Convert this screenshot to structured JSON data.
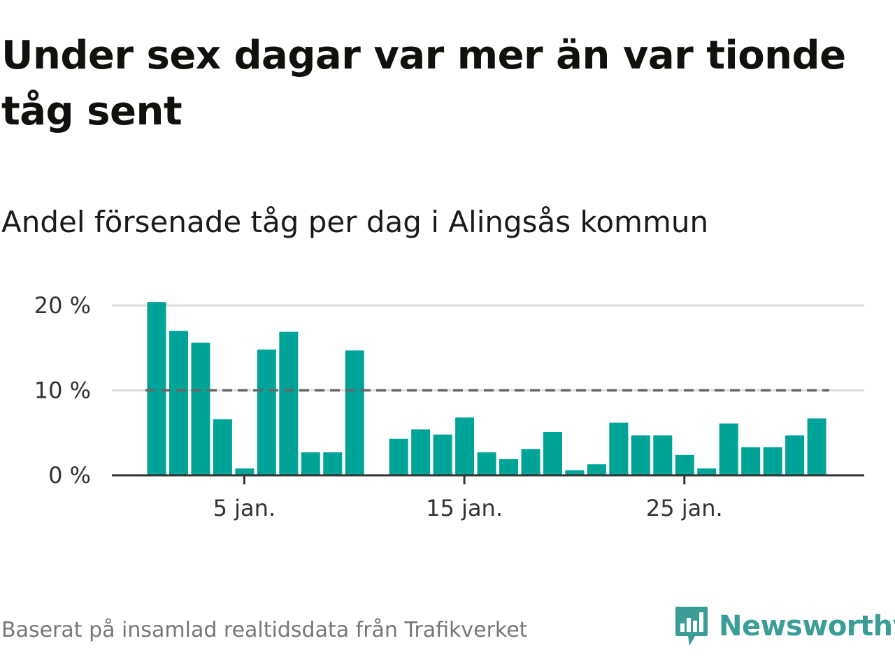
{
  "header": {
    "title": "Under sex dagar var mer än var tionde tåg sent",
    "subtitle": "Andel försenade tåg per dag i Alingsås kommun"
  },
  "footer": {
    "source": "Baserat på insamlad realtidsdata från Trafikverket",
    "brand": "Newsworthy"
  },
  "colors": {
    "bar": "#00a398",
    "reference_line": "#666666",
    "grid": "#dddddd",
    "axis": "#333333",
    "brand": "#3a9e96"
  },
  "chart_data": {
    "type": "bar",
    "x": [
      1,
      2,
      3,
      4,
      5,
      6,
      7,
      8,
      9,
      10,
      11,
      12,
      13,
      14,
      15,
      16,
      17,
      18,
      19,
      20,
      21,
      22,
      23,
      24,
      25,
      26,
      27,
      28,
      29,
      30,
      31
    ],
    "values": [
      20.4,
      17.0,
      15.6,
      6.6,
      0.8,
      14.8,
      16.9,
      2.7,
      2.7,
      14.7,
      null,
      4.3,
      5.4,
      4.8,
      6.8,
      2.7,
      1.9,
      3.1,
      5.1,
      0.6,
      1.3,
      6.2,
      4.7,
      4.7,
      2.4,
      0.8,
      6.1,
      3.3,
      3.3,
      4.7,
      6.7
    ],
    "reference_line": {
      "value": 10,
      "style": "dashed"
    },
    "ylim": [
      0,
      20
    ],
    "yticks": [
      {
        "value": 0,
        "label": "0 %"
      },
      {
        "value": 10,
        "label": "10 %"
      },
      {
        "value": 20,
        "label": "20 %"
      }
    ],
    "xticks": [
      {
        "value": 5,
        "label": "5 jan."
      },
      {
        "value": 15,
        "label": "15 jan."
      },
      {
        "value": 25,
        "label": "25 jan."
      }
    ],
    "grid": true,
    "legend": false
  }
}
